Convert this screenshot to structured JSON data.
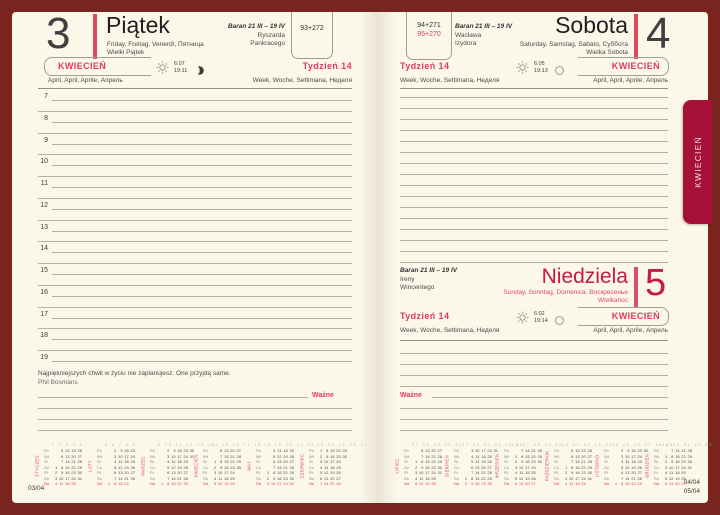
{
  "colors": {
    "frame": "#7a241f",
    "page": "#fbf7e9",
    "accent": "#e23a5c",
    "crimson": "#c81a42",
    "tab": "#a81137",
    "line": "#b5b0a2"
  },
  "icons": {
    "sun": "sun-icon",
    "moon_gibbous": "moon-gibbous-icon",
    "moon_full": "moon-full-icon"
  },
  "tab": {
    "label": "KWIECIEŃ"
  },
  "left_page": {
    "day_number": "3",
    "day_name": "Piątek",
    "day_names_intl": "Friday, Freitag, Venerdì, Пятница",
    "holiday": "Wielki Piątek",
    "zodiac": "Baran 21 III – 19 IV",
    "name_day_1": "Ryszarda",
    "name_day_2": "Pankracego",
    "day_of_year": "93+272",
    "month_label": "KWIECIEŃ",
    "month_intl": "April, April, Aprile, Апрель",
    "week_label": "Tydzień 14",
    "week_intl": "Week, Woche, Settimana, Неделя",
    "sunrise": "6:07",
    "sunset": "19:11",
    "hours": [
      "7",
      "8",
      "9",
      "10",
      "11",
      "12",
      "13",
      "14",
      "15",
      "16",
      "17",
      "18",
      "19"
    ],
    "quote": "Najpiękniejszych chwil w życiu nie zaplanujesz. One przyjdą same.",
    "quote_author": "Phil Bosmans",
    "important_label": "Ważne",
    "footer": "03/04"
  },
  "right_page": {
    "saturday": {
      "day_number": "4",
      "day_name": "Sobota",
      "day_names_intl": "Saturday, Samstag, Sabato, Суббота",
      "holiday": "Wielka Sobota",
      "zodiac": "Baran 21 III – 19 IV",
      "name_day_1": "Wacława",
      "name_day_2": "Izydora",
      "day_of_year_1": "94+271",
      "day_of_year_2": "95+270",
      "month_label": "KWIECIEŃ",
      "month_intl": "April, April, Aprile, Апрель",
      "week_label": "Tydzień 14",
      "week_intl": "Week, Woche, Settimana, Неделя",
      "sunrise": "6:05",
      "sunset": "19:13"
    },
    "sunday": {
      "day_number": "5",
      "day_name": "Niedziela",
      "day_names_intl": "Sunday, Sonntag, Domenica, Воскресенье",
      "holiday": "Wielkanoc",
      "zodiac": "Baran 21 III – 19 IV",
      "name_day_1": "Ireny",
      "name_day_2": "Wincentego",
      "month_label": "KWIECIEŃ",
      "month_intl": "April, April, Aprile, Апрель",
      "week_label": "Tydzień 14",
      "week_intl": "Week, Woche, Settimana, Неделя",
      "sunrise": "6:02",
      "sunset": "19:14"
    },
    "important_label": "Ważne",
    "footer_line_1": "04/04",
    "footer_line_2": "05/04"
  },
  "mini_calendars": {
    "day_labels": [
      "Pn",
      "Wt",
      "Śr",
      "Cz",
      "Pt",
      "So",
      "Nd"
    ],
    "left": [
      {
        "name": "STYCZEŃ",
        "weeks": [
          "1",
          "2",
          "3",
          "4",
          "5"
        ],
        "rows": [
          [
            "",
            "5",
            "12",
            "19",
            "26"
          ],
          [
            "",
            "6",
            "13",
            "20",
            "27"
          ],
          [
            "",
            "7",
            "14",
            "21",
            "28"
          ],
          [
            "1",
            "8",
            "15",
            "22",
            "29"
          ],
          [
            "2",
            "9",
            "16",
            "23",
            "30"
          ],
          [
            "3",
            "10",
            "17",
            "24",
            "31"
          ],
          [
            "4",
            "11",
            "18",
            "25",
            ""
          ]
        ]
      },
      {
        "name": "LUTY",
        "weeks": [
          "5",
          "6",
          "7",
          "8",
          "9"
        ],
        "rows": [
          [
            "",
            "2",
            "9",
            "16",
            "23"
          ],
          [
            "",
            "3",
            "10",
            "17",
            "24"
          ],
          [
            "",
            "4",
            "11",
            "18",
            "25"
          ],
          [
            "",
            "5",
            "12",
            "19",
            "26"
          ],
          [
            "",
            "6",
            "13",
            "20",
            "27"
          ],
          [
            "",
            "7",
            "14",
            "21",
            "28"
          ],
          [
            "1",
            "8",
            "15",
            "22",
            ""
          ]
        ]
      },
      {
        "name": "MARZEC",
        "weeks": [
          "9",
          "10",
          "11",
          "12",
          "13",
          "14"
        ],
        "rows": [
          [
            "",
            "2",
            "9",
            "16",
            "23",
            "30"
          ],
          [
            "",
            "3",
            "10",
            "17",
            "24",
            "31"
          ],
          [
            "",
            "4",
            "11",
            "18",
            "25",
            ""
          ],
          [
            "",
            "5",
            "12",
            "19",
            "26",
            ""
          ],
          [
            "",
            "6",
            "13",
            "20",
            "27",
            ""
          ],
          [
            "",
            "7",
            "14",
            "21",
            "28",
            ""
          ],
          [
            "1",
            "8",
            "15",
            "22",
            "29",
            ""
          ]
        ]
      },
      {
        "name": "KWIECIEŃ",
        "weeks": [
          "14",
          "15",
          "16",
          "17",
          "18"
        ],
        "rows": [
          [
            "",
            "6",
            "13",
            "20",
            "27"
          ],
          [
            "",
            "7",
            "14",
            "21",
            "28"
          ],
          [
            "1",
            "8",
            "15",
            "22",
            "29"
          ],
          [
            "2",
            "9",
            "16",
            "23",
            "30"
          ],
          [
            "3",
            "10",
            "17",
            "24",
            ""
          ],
          [
            "4",
            "11",
            "18",
            "25",
            ""
          ],
          [
            "5",
            "12",
            "19",
            "26",
            ""
          ]
        ]
      },
      {
        "name": "MAJ",
        "weeks": [
          "18",
          "19",
          "20",
          "21",
          "22"
        ],
        "rows": [
          [
            "",
            "4",
            "11",
            "18",
            "25"
          ],
          [
            "",
            "5",
            "12",
            "19",
            "26"
          ],
          [
            "",
            "6",
            "13",
            "20",
            "27"
          ],
          [
            "",
            "7",
            "14",
            "21",
            "28"
          ],
          [
            "1",
            "8",
            "15",
            "22",
            "29"
          ],
          [
            "2",
            "9",
            "16",
            "23",
            "30"
          ],
          [
            "3",
            "10",
            "17",
            "24",
            "31"
          ]
        ]
      },
      {
        "name": "CZERWIEC",
        "weeks": [
          "23",
          "24",
          "25",
          "26",
          "27"
        ],
        "rows": [
          [
            "1",
            "8",
            "15",
            "22",
            "29"
          ],
          [
            "2",
            "9",
            "16",
            "23",
            "30"
          ],
          [
            "3",
            "10",
            "17",
            "24",
            ""
          ],
          [
            "4",
            "11",
            "18",
            "25",
            ""
          ],
          [
            "5",
            "12",
            "19",
            "26",
            ""
          ],
          [
            "6",
            "13",
            "20",
            "27",
            ""
          ],
          [
            "7",
            "14",
            "21",
            "28",
            ""
          ]
        ]
      }
    ],
    "right": [
      {
        "name": "LIPIEC",
        "weeks": [
          "27",
          "28",
          "29",
          "30",
          "31"
        ],
        "rows": [
          [
            "",
            "6",
            "13",
            "20",
            "27"
          ],
          [
            "",
            "7",
            "14",
            "21",
            "28"
          ],
          [
            "1",
            "8",
            "15",
            "22",
            "29"
          ],
          [
            "2",
            "9",
            "16",
            "23",
            "30"
          ],
          [
            "3",
            "10",
            "17",
            "24",
            "31"
          ],
          [
            "4",
            "11",
            "18",
            "25",
            ""
          ],
          [
            "5",
            "12",
            "19",
            "26",
            ""
          ]
        ]
      },
      {
        "name": "SIERPIEŃ",
        "weeks": [
          "31",
          "32",
          "33",
          "34",
          "35",
          "36"
        ],
        "rows": [
          [
            "",
            "3",
            "10",
            "17",
            "24",
            "31"
          ],
          [
            "",
            "4",
            "11",
            "18",
            "25",
            ""
          ],
          [
            "",
            "5",
            "12",
            "19",
            "26",
            ""
          ],
          [
            "",
            "6",
            "13",
            "20",
            "27",
            ""
          ],
          [
            "",
            "7",
            "14",
            "21",
            "28",
            ""
          ],
          [
            "1",
            "8",
            "15",
            "22",
            "29",
            ""
          ],
          [
            "2",
            "9",
            "16",
            "23",
            "30",
            ""
          ]
        ]
      },
      {
        "name": "WRZESIEŃ",
        "weeks": [
          "36",
          "37",
          "38",
          "39",
          "40"
        ],
        "rows": [
          [
            "",
            "7",
            "14",
            "21",
            "28"
          ],
          [
            "1",
            "8",
            "15",
            "22",
            "29"
          ],
          [
            "2",
            "9",
            "16",
            "23",
            "30"
          ],
          [
            "3",
            "10",
            "17",
            "24",
            ""
          ],
          [
            "4",
            "11",
            "18",
            "25",
            ""
          ],
          [
            "5",
            "12",
            "19",
            "26",
            ""
          ],
          [
            "6",
            "13",
            "20",
            "27",
            ""
          ]
        ]
      },
      {
        "name": "PAŹDZIERNIK",
        "weeks": [
          "40",
          "41",
          "42",
          "43",
          "44"
        ],
        "rows": [
          [
            "",
            "5",
            "12",
            "19",
            "26"
          ],
          [
            "",
            "6",
            "13",
            "20",
            "27"
          ],
          [
            "",
            "7",
            "14",
            "21",
            "28"
          ],
          [
            "1",
            "8",
            "15",
            "22",
            "29"
          ],
          [
            "2",
            "9",
            "16",
            "23",
            "30"
          ],
          [
            "3",
            "10",
            "17",
            "24",
            "31"
          ],
          [
            "4",
            "11",
            "18",
            "25",
            ""
          ]
        ]
      },
      {
        "name": "LISTOPAD",
        "weeks": [
          "44",
          "45",
          "46",
          "47",
          "48",
          "49"
        ],
        "rows": [
          [
            "",
            "2",
            "9",
            "16",
            "23",
            "30"
          ],
          [
            "",
            "3",
            "10",
            "17",
            "24",
            ""
          ],
          [
            "",
            "4",
            "11",
            "18",
            "25",
            ""
          ],
          [
            "",
            "5",
            "12",
            "19",
            "26",
            ""
          ],
          [
            "",
            "6",
            "13",
            "20",
            "27",
            ""
          ],
          [
            "",
            "7",
            "14",
            "21",
            "28",
            ""
          ],
          [
            "1",
            "8",
            "15",
            "22",
            "29",
            ""
          ]
        ]
      },
      {
        "name": "GRUDZIEŃ",
        "weeks": [
          "49",
          "50",
          "51",
          "52",
          "53"
        ],
        "rows": [
          [
            "",
            "7",
            "14",
            "21",
            "28"
          ],
          [
            "1",
            "8",
            "15",
            "22",
            "29"
          ],
          [
            "2",
            "9",
            "16",
            "23",
            "30"
          ],
          [
            "3",
            "10",
            "17",
            "24",
            "31"
          ],
          [
            "4",
            "11",
            "18",
            "25",
            ""
          ],
          [
            "5",
            "12",
            "19",
            "26",
            ""
          ],
          [
            "6",
            "13",
            "20",
            "27",
            ""
          ]
        ]
      }
    ]
  }
}
